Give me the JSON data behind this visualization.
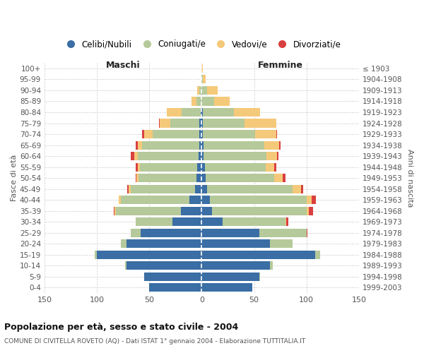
{
  "age_groups": [
    "0-4",
    "5-9",
    "10-14",
    "15-19",
    "20-24",
    "25-29",
    "30-34",
    "35-39",
    "40-44",
    "45-49",
    "50-54",
    "55-59",
    "60-64",
    "65-69",
    "70-74",
    "75-79",
    "80-84",
    "85-89",
    "90-94",
    "95-99",
    "100+"
  ],
  "birth_years": [
    "1999-2003",
    "1994-1998",
    "1989-1993",
    "1984-1988",
    "1979-1983",
    "1974-1978",
    "1969-1973",
    "1964-1968",
    "1959-1963",
    "1954-1958",
    "1949-1953",
    "1944-1948",
    "1939-1943",
    "1934-1938",
    "1929-1933",
    "1924-1928",
    "1919-1923",
    "1914-1918",
    "1909-1913",
    "1904-1908",
    "≤ 1903"
  ],
  "colors": {
    "celibe": "#3a6ea5",
    "coniugato": "#b5c99a",
    "vedovo": "#f5c97a",
    "divorziato": "#d94040"
  },
  "maschi": {
    "celibe": [
      50,
      55,
      72,
      100,
      72,
      58,
      28,
      20,
      12,
      6,
      5,
      4,
      3,
      2,
      2,
      2,
      1,
      0,
      0,
      0,
      0
    ],
    "coniugato": [
      0,
      0,
      1,
      2,
      5,
      10,
      35,
      62,
      65,
      62,
      55,
      55,
      58,
      55,
      45,
      28,
      18,
      5,
      2,
      0,
      0
    ],
    "vedovo": [
      0,
      0,
      0,
      0,
      0,
      0,
      0,
      1,
      2,
      2,
      2,
      2,
      3,
      4,
      8,
      10,
      14,
      5,
      2,
      0,
      0
    ],
    "divorziato": [
      0,
      0,
      0,
      0,
      0,
      0,
      0,
      1,
      0,
      1,
      1,
      2,
      4,
      2,
      2,
      1,
      0,
      0,
      0,
      0,
      0
    ]
  },
  "femmine": {
    "celibe": [
      48,
      55,
      65,
      108,
      65,
      55,
      20,
      10,
      8,
      5,
      4,
      3,
      2,
      2,
      1,
      1,
      1,
      0,
      0,
      0,
      0
    ],
    "coniugato": [
      0,
      1,
      3,
      5,
      22,
      45,
      60,
      90,
      92,
      82,
      65,
      58,
      60,
      58,
      50,
      40,
      30,
      12,
      5,
      1,
      0
    ],
    "vedovo": [
      0,
      0,
      0,
      0,
      0,
      0,
      1,
      2,
      5,
      8,
      8,
      8,
      10,
      14,
      20,
      30,
      25,
      15,
      10,
      3,
      1
    ],
    "divorziato": [
      0,
      0,
      0,
      0,
      0,
      1,
      2,
      4,
      4,
      2,
      3,
      2,
      1,
      1,
      1,
      0,
      0,
      0,
      0,
      0,
      0
    ]
  },
  "xlim": 150,
  "title": "Popolazione per età, sesso e stato civile - 2004",
  "subtitle": "COMUNE DI CIVITELLA ROVETO (AQ) - Dati ISTAT 1° gennaio 2004 - Elaborazione TUTTITALIA.IT",
  "xlabel_left": "Maschi",
  "xlabel_right": "Femmine",
  "ylabel_left": "Fasce di età",
  "ylabel_right": "Anni di nascita",
  "legend_labels": [
    "Celibi/Nubili",
    "Coniugati/e",
    "Vedovi/e",
    "Divorziati/e"
  ],
  "legend_marker_style": "circle"
}
